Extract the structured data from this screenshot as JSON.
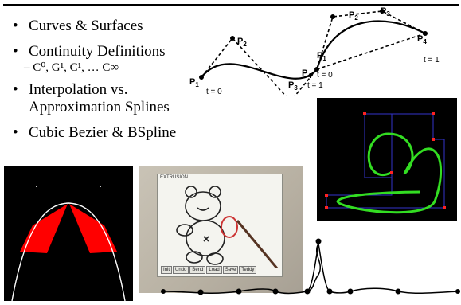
{
  "bullets": {
    "curves": "Curves & Surfaces",
    "continuity": "Continuity Definitions",
    "continuity_sub": "– C⁰, G¹, C¹, … C∞",
    "interp_line1": "Interpolation vs.",
    "interp_line2": "Approximation Splines",
    "cubic": "Cubic Bezier & BSpline"
  },
  "diagram": {
    "left": {
      "p1": "P1",
      "p2": "P2",
      "p3": "P3",
      "p4": "P4",
      "t0": "t = 0",
      "t1": "t = 1"
    },
    "right": {
      "p1": "P1",
      "p2": "P2",
      "p3": "P3",
      "p4": "P4",
      "t0": "t = 0",
      "t1": "t = 1"
    },
    "p_letter": "P",
    "idx": {
      "i1": "1",
      "i2": "2",
      "i3": "3",
      "i4": "4"
    }
  },
  "tablet": {
    "title": "EXTRUSION",
    "buttons": [
      "Init",
      "Undo",
      "Bend",
      "Load",
      "Save",
      "Teddy"
    ]
  },
  "colors": {
    "green_curve": "#33dd22",
    "red_fill": "#ff0000",
    "control_blue": "#3333cc"
  }
}
